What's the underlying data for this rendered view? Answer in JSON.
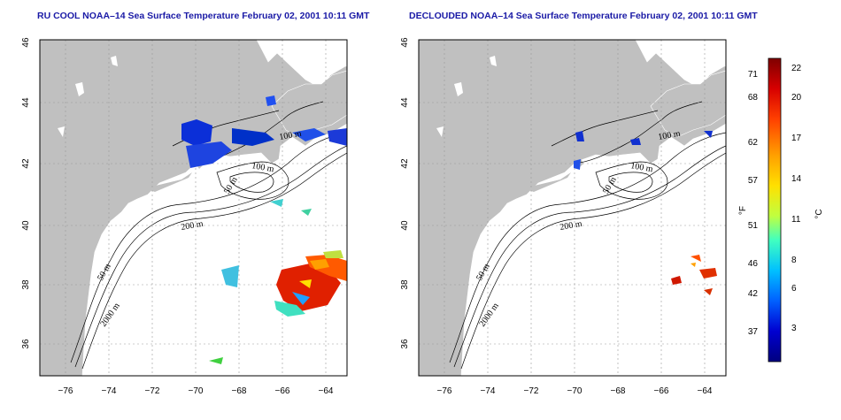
{
  "panels": [
    {
      "id": "left",
      "title": "RU COOL NOAA–14 Sea Surface Temperature February 02, 2001 10:11 GMT"
    },
    {
      "id": "right",
      "title": "DECLOUDED NOAA–14 Sea Surface Temperature February 02, 2001 10:11 GMT"
    }
  ],
  "axes": {
    "x_ticks": [
      "−76",
      "−74",
      "−72",
      "−70",
      "−68",
      "−66",
      "−64"
    ],
    "y_ticks": [
      "36",
      "38",
      "40",
      "42",
      "44",
      "46"
    ]
  },
  "contour_labels": {
    "m100_a": "100 m",
    "m100_b": "100 m",
    "m50_a": "50 m",
    "m200": "200 m",
    "m50_b": "50 m",
    "m2000": "2000 m"
  },
  "colorbar": {
    "unit_f": "°F",
    "unit_c": "°C",
    "f_ticks": [
      "71",
      "68",
      "62",
      "57",
      "51",
      "46",
      "42",
      "37"
    ],
    "c_ticks": [
      "22",
      "20",
      "17",
      "14",
      "11",
      "8",
      "6",
      "3"
    ],
    "colors": [
      "#7f0000",
      "#d70000",
      "#ff4000",
      "#ffa000",
      "#ffe000",
      "#c0ff40",
      "#40ffc0",
      "#00c0ff",
      "#0060ff",
      "#0000d0",
      "#00007f"
    ]
  }
}
